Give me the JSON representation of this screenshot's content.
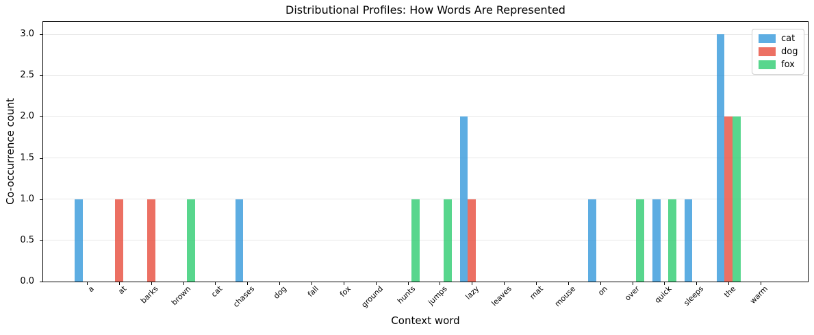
{
  "chart_data": {
    "type": "bar",
    "title": "Distributional Profiles: How Words Are Represented",
    "xlabel": "Context word",
    "ylabel": "Co-occurrence count",
    "categories": [
      "a",
      "at",
      "barks",
      "brown",
      "cat",
      "chases",
      "dog",
      "fall",
      "fox",
      "ground",
      "hunts",
      "jumps",
      "lazy",
      "leaves",
      "mat",
      "mouse",
      "on",
      "over",
      "quick",
      "sleeps",
      "the",
      "warm"
    ],
    "series": [
      {
        "name": "cat",
        "color": "rgba(52,152,219,0.8)",
        "values": [
          1,
          0,
          0,
          0,
          0,
          1,
          0,
          0,
          0,
          0,
          0,
          0,
          2,
          0,
          0,
          0,
          1,
          0,
          1,
          1,
          3,
          0
        ]
      },
      {
        "name": "dog",
        "color": "rgba(231,76,60,0.8)",
        "values": [
          0,
          1,
          1,
          0,
          0,
          0,
          0,
          0,
          0,
          0,
          0,
          0,
          1,
          0,
          0,
          0,
          0,
          0,
          0,
          0,
          2,
          0
        ]
      },
      {
        "name": "fox",
        "color": "rgba(46,204,113,0.8)",
        "values": [
          0,
          0,
          0,
          1,
          0,
          0,
          0,
          0,
          0,
          0,
          1,
          1,
          0,
          0,
          0,
          0,
          0,
          1,
          1,
          0,
          2,
          0
        ]
      }
    ],
    "ylim": [
      0,
      3.15
    ],
    "yticks": [
      "0.0",
      "0.5",
      "1.0",
      "1.5",
      "2.0",
      "2.5",
      "3.0"
    ],
    "grid": "horizontal",
    "legend_position": "upper right",
    "colors": {
      "cat_bar": "rgba(52,152,219,0.8)",
      "dog_bar": "rgba(231,76,60,0.8)",
      "fox_bar": "rgba(46,204,113,0.8)",
      "gridline": "#e7e7e7",
      "spine": "#000000"
    }
  }
}
